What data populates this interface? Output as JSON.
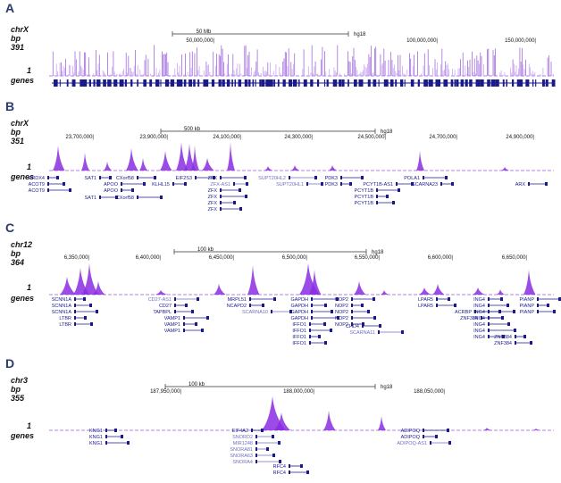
{
  "panels": [
    {
      "label": "A",
      "chrom": "chrX",
      "unit": "bp",
      "max": "391",
      "min": "1",
      "track": "genes",
      "scale": "50 Mb",
      "assembly": "hg18",
      "coords": [
        "50,000,000|",
        "100,000,000|",
        "150,000,000|"
      ],
      "genes": []
    },
    {
      "label": "B",
      "chrom": "chrX",
      "unit": "bp",
      "max": "351",
      "min": "1",
      "track": "genes",
      "scale": "500 kb",
      "assembly": "hg18",
      "coords": [
        "23,700,000|",
        "23,900,000|",
        "24,100,000|",
        "24,300,000|",
        "24,500,000|",
        "24,700,000|",
        "24,900,000|"
      ],
      "genes": [
        "PRDX4",
        "ACOT9",
        "ACOT9",
        "SAT1",
        "SAT1",
        "APOO",
        "APOO",
        "CXorf58",
        "CXorf58",
        "KLHL15",
        "EIF2S3",
        "ZFX",
        "ZFX-AS1",
        "ZFX",
        "ZFX",
        "ZFX",
        "ZFX",
        "SUPT20HL2",
        "SUPT20HL1",
        "PDK3",
        "PDK3",
        "PCYT1B-AS1",
        "PCYT1B",
        "PCYT1B",
        "PCYT1B",
        "POLA1",
        "SCARNA23",
        "ARX"
      ]
    },
    {
      "label": "C",
      "chrom": "chr12",
      "unit": "bp",
      "max": "364",
      "min": "1",
      "track": "genes",
      "scale": "100 kb",
      "assembly": "hg18",
      "coords": [
        "6,350,000|",
        "6,400,000|",
        "6,450,000|",
        "6,500,000|",
        "6,550,000|",
        "6,600,000|",
        "6,650,000|"
      ],
      "genes": [
        "SCNN1A",
        "SCNN1A",
        "SCNN1A",
        "LTBR",
        "LTBR",
        "CD27-AS1",
        "CD27",
        "TAPBPL",
        "VAMP1",
        "VAMP1",
        "VAMP1",
        "MRPL51",
        "NCAPD2",
        "SCARNA10",
        "GAPDH",
        "GAPDH",
        "GAPDH",
        "GAPDH",
        "IFFO1",
        "IFFO1",
        "IFFO1",
        "IFFO1",
        "NOP2",
        "NOP2",
        "NOP2",
        "NOP2",
        "NOP2",
        "CHD4",
        "SCARNA11",
        "LPAR5",
        "LPAR5",
        "ACRBP",
        "ING4",
        "ING4",
        "ING4",
        "ING4",
        "ING4",
        "ING4",
        "ING4",
        "ZNF384",
        "ZNF384",
        "ZNF384",
        "PIANP",
        "PIANP",
        "PIANP"
      ]
    },
    {
      "label": "D",
      "chrom": "chr3",
      "unit": "bp",
      "max": "355",
      "min": "1",
      "track": "genes",
      "scale": "100 kb",
      "assembly": "hg18",
      "coords": [
        "187,950,000|",
        "188,000,000|",
        "188,050,000|"
      ],
      "genes": [
        "KNG1",
        "KNG1",
        "KNG1",
        "EIF4A2",
        "SNORD2",
        "MIR1248",
        "SNORA81",
        "SNORA63",
        "SNORA4",
        "RFC4",
        "RFC4",
        "ADIPOQ",
        "ADIPOQ",
        "ADIPOQ-AS1"
      ]
    }
  ]
}
